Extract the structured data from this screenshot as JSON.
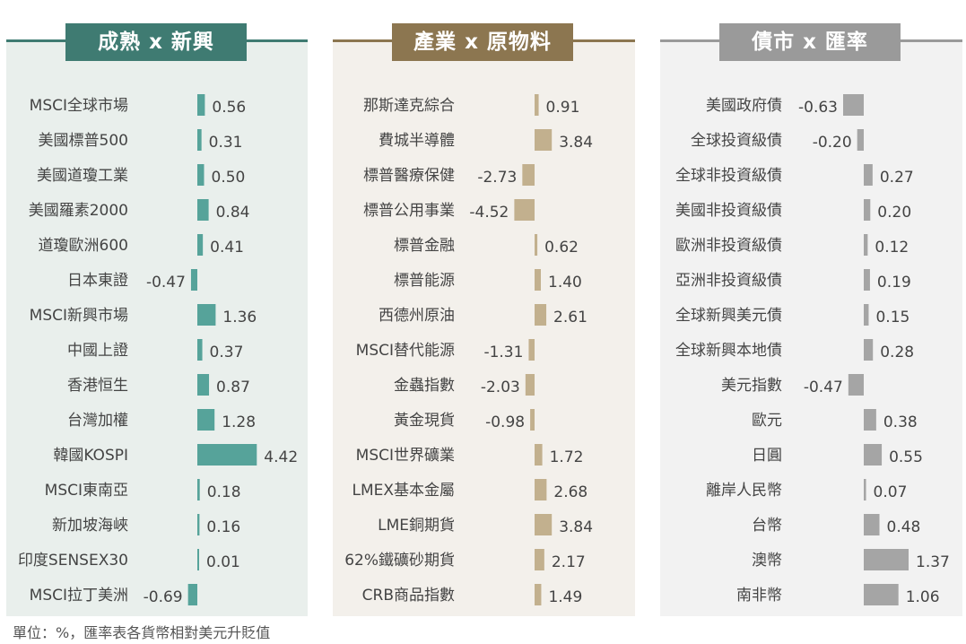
{
  "footnote": "單位：%，匯率表各貨幣相對美元升貶值",
  "chart_data": [
    {
      "type": "bar",
      "title": "成熟 x 新興",
      "color": "#56a39a",
      "header_color": "#3f7b72",
      "bg": "#e9efec",
      "categories": [
        "MSCI全球市場",
        "美國標普500",
        "美國道瓊工業",
        "美國羅素2000",
        "道瓊歐洲600",
        "日本東證",
        "MSCI新興市場",
        "中國上證",
        "香港恒生",
        "台灣加權",
        "韓國KOSPI",
        "MSCI東南亞",
        "新加坡海峽",
        "印度SENSEX30",
        "MSCI拉丁美洲"
      ],
      "values": [
        0.56,
        0.31,
        0.5,
        0.84,
        0.41,
        -0.47,
        1.36,
        0.37,
        0.87,
        1.28,
        4.42,
        0.18,
        0.16,
        0.01,
        -0.69
      ],
      "labels": [
        "0.56",
        "0.31",
        "0.50",
        "0.84",
        "0.41",
        "-0.47",
        "1.36",
        "0.37",
        "0.87",
        "1.28",
        "4.42",
        "0.18",
        "0.16",
        "0.01",
        "-0.69"
      ]
    },
    {
      "type": "bar",
      "title": "產業 x 原物料",
      "color": "#c2b08e",
      "header_color": "#8c7650",
      "bg": "#f3f0eb",
      "categories": [
        "那斯達克綜合",
        "費城半導體",
        "標普醫療保健",
        "標普公用事業",
        "標普金融",
        "標普能源",
        "西德州原油",
        "MSCI替代能源",
        "金蟲指數",
        "黃金現貨",
        "MSCI世界礦業",
        "LMEX基本金屬",
        "LME銅期貨",
        "62%鐵礦砂期貨",
        "CRB商品指數"
      ],
      "values": [
        0.91,
        3.84,
        -2.73,
        -4.52,
        0.62,
        1.4,
        2.61,
        -1.31,
        -2.03,
        -0.98,
        1.72,
        2.68,
        3.84,
        2.17,
        1.49
      ],
      "labels": [
        "0.91",
        "3.84",
        "-2.73",
        "-4.52",
        "0.62",
        "1.40",
        "2.61",
        "-1.31",
        "-2.03",
        "-0.98",
        "1.72",
        "2.68",
        "3.84",
        "2.17",
        "1.49"
      ]
    },
    {
      "type": "bar",
      "title": "債市 x 匯率",
      "color": "#a5a5a5",
      "header_color": "#9a9a9a",
      "bg": "#f2f2f2",
      "categories": [
        "美國政府債",
        "全球投資級債",
        "全球非投資級債",
        "美國非投資級債",
        "歐洲非投資級債",
        "亞洲非投資級債",
        "全球新興美元債",
        "全球新興本地債",
        "美元指數",
        "歐元",
        "日圓",
        "離岸人民幣",
        "台幣",
        "澳幣",
        "南非幣"
      ],
      "values": [
        -0.63,
        -0.2,
        0.27,
        0.2,
        0.12,
        0.19,
        0.15,
        0.28,
        -0.47,
        0.38,
        0.55,
        0.07,
        0.48,
        1.37,
        1.06
      ],
      "labels": [
        "-0.63",
        "-0.20",
        "0.27",
        "0.20",
        "0.12",
        "0.19",
        "0.15",
        "0.28",
        "-0.47",
        "0.38",
        "0.55",
        "0.07",
        "0.48",
        "1.37",
        "1.06"
      ]
    }
  ]
}
